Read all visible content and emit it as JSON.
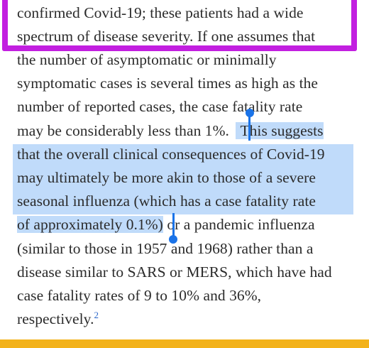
{
  "article": {
    "lines": [
      "confirmed Covid-19; these patients had a wide",
      "spectrum of disease severity. If one assumes that",
      "the number of asymptomatic or minimally",
      "symptomatic cases is several times as high as the",
      "number of reported cases, the case fatality rate",
      "may be considerably less than 1%.",
      "This suggests",
      "that the overall clinical consequences of Covid-19",
      "may ultimately be more akin to those of a severe",
      "seasonal influenza (which has a case fatality rate",
      "of approximately 0.1%)",
      " or a pandemic influenza",
      "(similar to those in 1957 and 1968) rather than a",
      "disease similar to SARS or MERS, which have had",
      "case fatality rates of 9 to 10% and 36%,",
      "respectively."
    ],
    "footnote_ref": "2"
  },
  "colors": {
    "highlight_box": "#c21fe0",
    "selection": "#8cbef5",
    "selection_handle": "#1a73e8",
    "bottom_bar": "#f3b21a",
    "text": "#2b2b2b",
    "footnote": "#2a66c9"
  },
  "icons": {
    "selection_start": "text-selection-start-handle-icon",
    "selection_end": "text-selection-end-handle-icon"
  }
}
